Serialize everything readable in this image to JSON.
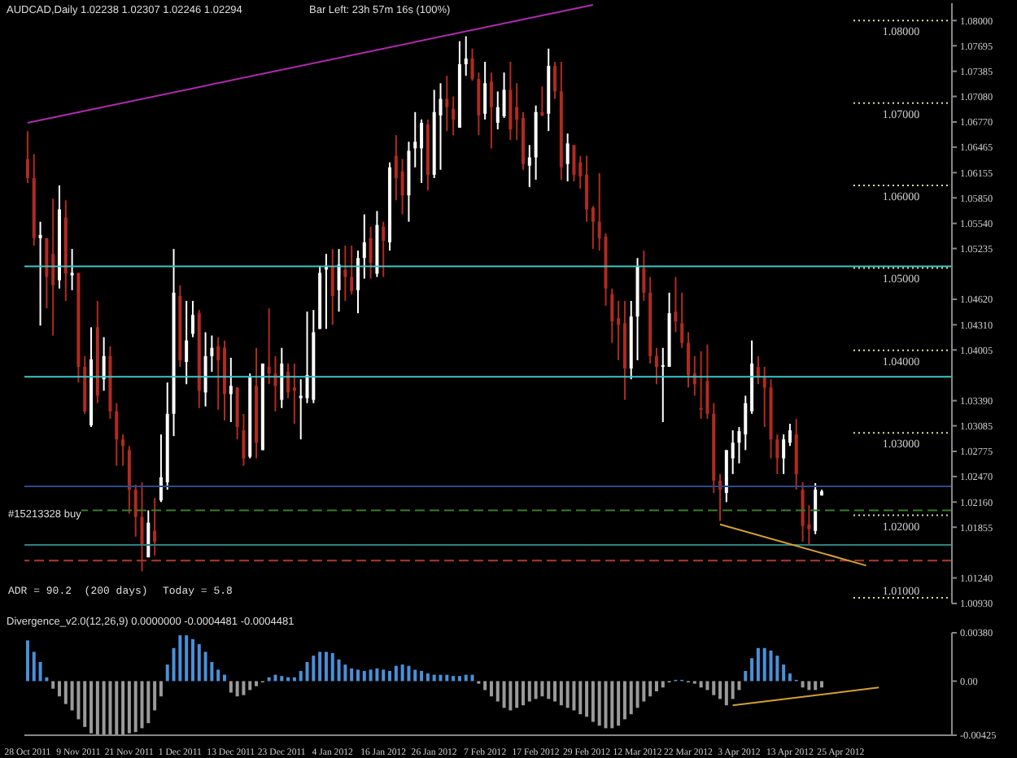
{
  "chart_data": [
    {
      "type": "candlestick",
      "title": "AUDCAD,Daily 1.02238 1.02307 1.02246 1.02294",
      "tick_labels": "y",
      "annotations": [
        "Bar Left: 23h 57m 16s (100%)",
        "#15213328 buy",
        "ADR = 90.2  (200 days)",
        "Today = 5.8"
      ],
      "categories": [
        null,
        null,
        null,
        null,
        null,
        null,
        null,
        null,
        null,
        null,
        null,
        null,
        null,
        null,
        null,
        null,
        null,
        null,
        null,
        null,
        null,
        null,
        null,
        null,
        null,
        null,
        null,
        null,
        null,
        null,
        null,
        null,
        null,
        null,
        null,
        null,
        null,
        null,
        null,
        null,
        null,
        null,
        null,
        null,
        null,
        null,
        null,
        null,
        null,
        null,
        null,
        null,
        null,
        null,
        null,
        null,
        null,
        null,
        null,
        null,
        null,
        null,
        null,
        null,
        null,
        null,
        null,
        null,
        null,
        null,
        null,
        null,
        null,
        null,
        null,
        null,
        null,
        null,
        null,
        null,
        null,
        null,
        null,
        null,
        null,
        null,
        null,
        null,
        null,
        null,
        null,
        null,
        null,
        null,
        null,
        null,
        null,
        null,
        null,
        null,
        null,
        null,
        null,
        null,
        null,
        null,
        null,
        null,
        null,
        null,
        null,
        null,
        null,
        null,
        null,
        null,
        null,
        null,
        null,
        null,
        null,
        null,
        null,
        null,
        null,
        null,
        null,
        null,
        null,
        null,
        null,
        null,
        null,
        null,
        null,
        null,
        null,
        null,
        null,
        null,
        null,
        null,
        null,
        null,
        null,
        null
      ],
      "ohlc": [
        [
          1.0632,
          1.0666,
          1.0603,
          1.0609
        ],
        [
          1.0609,
          1.0638,
          1.0527,
          1.0536
        ],
        [
          1.0536,
          1.0556,
          1.043,
          1.054
        ],
        [
          1.0536,
          1.0536,
          1.0451,
          1.0489
        ],
        [
          1.0517,
          1.0584,
          1.0418,
          1.0479
        ],
        [
          1.0485,
          1.06,
          1.0475,
          1.0571
        ],
        [
          1.0561,
          1.0582,
          1.046,
          1.0493
        ],
        [
          1.0491,
          1.0523,
          1.0473,
          1.0494
        ],
        [
          1.0494,
          1.0494,
          1.0361,
          1.038
        ],
        [
          1.038,
          1.0393,
          1.0323,
          1.0326
        ],
        [
          1.0309,
          1.0428,
          1.0307,
          1.0389
        ],
        [
          1.0428,
          1.046,
          1.0336,
          1.0345
        ],
        [
          1.0365,
          1.0416,
          1.0351,
          1.0393
        ],
        [
          1.0393,
          1.0405,
          1.0317,
          1.0326
        ],
        [
          1.0326,
          1.0336,
          1.026,
          1.0292
        ],
        [
          1.0292,
          1.0298,
          1.026,
          1.0284
        ],
        [
          1.0279,
          1.0284,
          1.0202,
          1.0231
        ],
        [
          1.0231,
          1.0237,
          1.0174,
          1.0198
        ],
        [
          1.0198,
          1.024,
          1.0132,
          1.0164
        ],
        [
          1.0149,
          1.0206,
          1.0149,
          1.0191
        ],
        [
          1.0181,
          1.0221,
          1.0151,
          1.0168
        ],
        [
          1.0218,
          1.0298,
          1.0216,
          1.0246
        ],
        [
          1.024,
          1.0361,
          1.0231,
          1.0323
        ],
        [
          1.0323,
          1.0523,
          1.0296,
          1.047
        ],
        [
          1.0466,
          1.0479,
          1.038,
          1.0388
        ],
        [
          1.0386,
          1.046,
          1.0359,
          1.0412
        ],
        [
          1.042,
          1.046,
          1.0416,
          1.0443
        ],
        [
          1.0445,
          1.0449,
          1.033,
          1.0351
        ],
        [
          1.0349,
          1.0422,
          1.0332,
          1.0393
        ],
        [
          1.0393,
          1.0418,
          1.0374,
          1.0403
        ],
        [
          1.0405,
          1.0416,
          1.0328,
          1.0388
        ],
        [
          1.0403,
          1.0412,
          1.0315,
          1.0347
        ],
        [
          1.0347,
          1.0391,
          1.0313,
          1.0357
        ],
        [
          1.0355,
          1.0355,
          1.0292,
          1.0307
        ],
        [
          1.0303,
          1.0323,
          1.026,
          1.0269
        ],
        [
          1.0271,
          1.0372,
          1.0269,
          1.0367
        ],
        [
          1.0357,
          1.0403,
          1.0269,
          1.0288
        ],
        [
          1.0279,
          1.0384,
          1.0279,
          1.0384
        ],
        [
          1.038,
          1.0451,
          1.0359,
          1.0372
        ],
        [
          1.0372,
          1.0393,
          1.0326,
          1.0357
        ],
        [
          1.034,
          1.0403,
          1.033,
          1.0384
        ],
        [
          1.0374,
          1.0384,
          1.0342,
          1.0349
        ],
        [
          1.0355,
          1.0384,
          1.0311,
          1.0351
        ],
        [
          1.0342,
          1.0365,
          1.0292,
          1.0345
        ],
        [
          1.0342,
          1.0447,
          1.0336,
          1.037
        ],
        [
          1.034,
          1.0449,
          1.0336,
          1.0422
        ],
        [
          1.0426,
          1.0502,
          1.0426,
          1.0494
        ],
        [
          1.0498,
          1.0517,
          1.0426,
          1.0502
        ],
        [
          1.0502,
          1.0523,
          1.0431,
          1.0466
        ],
        [
          1.0473,
          1.0523,
          1.0447,
          1.0504
        ],
        [
          1.0498,
          1.0527,
          1.046,
          1.0489
        ],
        [
          1.0489,
          1.0527,
          1.0468,
          1.0472
        ],
        [
          1.0473,
          1.0521,
          1.0445,
          1.0512
        ],
        [
          1.0512,
          1.0565,
          1.0487,
          1.0531
        ],
        [
          1.0536,
          1.055,
          1.0487,
          1.0506
        ],
        [
          1.0493,
          1.0569,
          1.0489,
          1.0552
        ],
        [
          1.055,
          1.0556,
          1.0489,
          1.0533
        ],
        [
          1.0531,
          1.0628,
          1.0521,
          1.0622
        ],
        [
          1.0636,
          1.0661,
          1.0582,
          1.0609
        ],
        [
          1.0617,
          1.0632,
          1.0565,
          1.0588
        ],
        [
          1.0588,
          1.0653,
          1.0556,
          1.0642
        ],
        [
          1.0645,
          1.0689,
          1.0622,
          1.0653
        ],
        [
          1.0645,
          1.068,
          1.0603,
          1.0676
        ],
        [
          1.0674,
          1.068,
          1.0594,
          1.0613
        ],
        [
          1.0613,
          1.0716,
          1.0609,
          1.0689
        ],
        [
          1.0685,
          1.0724,
          1.0619,
          1.0705
        ],
        [
          1.0705,
          1.0733,
          1.0666,
          1.0695
        ],
        [
          1.0693,
          1.0708,
          1.0661,
          1.068
        ],
        [
          1.067,
          1.0775,
          1.067,
          1.0747
        ],
        [
          1.0747,
          1.0781,
          1.0733,
          1.0754
        ],
        [
          1.0754,
          1.0766,
          1.0727,
          1.0729
        ],
        [
          1.0729,
          1.0737,
          1.0661,
          1.0685
        ],
        [
          1.0687,
          1.075,
          1.068,
          1.0724
        ],
        [
          1.0726,
          1.0737,
          1.0645,
          1.0695
        ],
        [
          1.0676,
          1.0714,
          1.0668,
          1.0695
        ],
        [
          1.0684,
          1.0737,
          1.0682,
          1.0716
        ],
        [
          1.0716,
          1.075,
          1.0655,
          1.0668
        ],
        [
          1.0695,
          1.0724,
          1.0655,
          1.068
        ],
        [
          1.0682,
          1.0689,
          1.0619,
          1.0626
        ],
        [
          1.0624,
          1.0649,
          1.0598,
          1.0634
        ],
        [
          1.0634,
          1.0697,
          1.0607,
          1.0689
        ],
        [
          1.0689,
          1.072,
          1.0684,
          1.0685
        ],
        [
          1.0687,
          1.0766,
          1.0666,
          1.0745
        ],
        [
          1.0745,
          1.075,
          1.0705,
          1.0714
        ],
        [
          1.0714,
          1.075,
          1.0607,
          1.0622
        ],
        [
          1.0626,
          1.0663,
          1.0605,
          1.0651
        ],
        [
          1.0649,
          1.0649,
          1.0605,
          1.0613
        ],
        [
          1.0628,
          1.0636,
          1.0596,
          1.0611
        ],
        [
          1.0613,
          1.0636,
          1.0556,
          1.0571
        ],
        [
          1.0573,
          1.0575,
          1.0523,
          1.0556
        ],
        [
          1.0556,
          1.0615,
          1.0521,
          1.0536
        ],
        [
          1.0538,
          1.0542,
          1.0454,
          1.0475
        ],
        [
          1.0468,
          1.0475,
          1.0409,
          1.0435
        ],
        [
          1.0439,
          1.046,
          1.0388,
          1.0431
        ],
        [
          1.0433,
          1.046,
          1.034,
          1.0378
        ],
        [
          1.0378,
          1.046,
          1.0365,
          1.0441
        ],
        [
          1.0441,
          1.0512,
          1.0388,
          1.0502
        ],
        [
          1.05,
          1.0521,
          1.046,
          1.047
        ],
        [
          1.047,
          1.0489,
          1.0384,
          1.0393
        ],
        [
          1.0393,
          1.0403,
          1.0359,
          1.038
        ],
        [
          1.038,
          1.0403,
          1.0313,
          1.0382
        ],
        [
          1.038,
          1.047,
          1.038,
          1.0445
        ],
        [
          1.0447,
          1.0489,
          1.0422,
          1.0435
        ],
        [
          1.0433,
          1.047,
          1.0403,
          1.0409
        ],
        [
          1.0409,
          1.0422,
          1.0355,
          1.037
        ],
        [
          1.0372,
          1.0393,
          1.0345,
          1.0359
        ],
        [
          1.033,
          1.0399,
          1.0317,
          1.033
        ],
        [
          1.0363,
          1.0407,
          1.0317,
          1.0323
        ],
        [
          1.0323,
          1.0336,
          1.0227,
          1.0242
        ],
        [
          1.0242,
          1.025,
          1.0193,
          1.0231
        ],
        [
          1.0227,
          1.0279,
          1.0216,
          1.0279
        ],
        [
          1.0269,
          1.0303,
          1.025,
          1.0288
        ],
        [
          1.0288,
          1.0307,
          1.0263,
          1.0302
        ],
        [
          1.0298,
          1.0345,
          1.0279,
          1.0336
        ],
        [
          1.0326,
          1.0412,
          1.0323,
          1.0384
        ],
        [
          1.038,
          1.0393,
          1.0359,
          1.0368
        ],
        [
          1.0368,
          1.038,
          1.0307,
          1.0355
        ],
        [
          1.0355,
          1.0365,
          1.0269,
          1.0292
        ],
        [
          1.0292,
          1.0298,
          1.025,
          1.0269
        ],
        [
          1.0269,
          1.0298,
          1.025,
          1.0292
        ],
        [
          1.0288,
          1.0311,
          1.0284,
          1.0303
        ],
        [
          1.0298,
          1.0317,
          1.0231,
          1.025
        ],
        [
          1.0231,
          1.024,
          1.0168,
          1.0187
        ],
        [
          1.0189,
          1.0212,
          1.0164,
          1.0183
        ],
        [
          1.0181,
          1.0239,
          1.0177,
          1.0231
        ],
        [
          1.0224,
          1.0231,
          1.0224,
          1.0229
        ],
        null,
        null,
        null,
        null,
        null,
        null,
        null,
        null,
        null,
        null,
        null,
        null,
        null,
        null,
        null,
        null,
        null,
        null,
        null,
        null
      ],
      "colors": [
        "#b22a22",
        "#b22a22",
        "#ffffff",
        "#b22a22",
        "#b22a22",
        "#ffffff",
        "#b22a22",
        "#ffffff",
        "#b22a22",
        "#b22a22",
        "#ffffff",
        "#b22a22",
        "#ffffff",
        "#b22a22",
        "#b22a22",
        "#b22a22",
        "#b22a22",
        "#b22a22",
        "#b22a22",
        "#ffffff",
        "#b22a22",
        "#ffffff",
        "#ffffff",
        "#ffffff",
        "#b22a22",
        "#ffffff",
        "#ffffff",
        "#b22a22",
        "#ffffff",
        "#ffffff",
        "#b22a22",
        "#b22a22",
        "#ffffff",
        "#b22a22",
        "#b22a22",
        "#ffffff",
        "#b22a22",
        "#ffffff",
        "#b22a22",
        "#b22a22",
        "#ffffff",
        "#b22a22",
        "#b22a22",
        "#ffffff",
        "#ffffff",
        "#ffffff",
        "#ffffff",
        "#ffffff",
        "#b22a22",
        "#ffffff",
        "#b22a22",
        "#b22a22",
        "#ffffff",
        "#ffffff",
        "#b22a22",
        "#ffffff",
        "#b22a22",
        "#ffffff",
        "#b22a22",
        "#b22a22",
        "#ffffff",
        "#ffffff",
        "#ffffff",
        "#b22a22",
        "#ffffff",
        "#ffffff",
        "#b22a22",
        "#b22a22",
        "#ffffff",
        "#ffffff",
        "#b22a22",
        "#b22a22",
        "#ffffff",
        "#b22a22",
        "#ffffff",
        "#ffffff",
        "#b22a22",
        "#b22a22",
        "#b22a22",
        "#ffffff",
        "#ffffff",
        "#b22a22",
        "#ffffff",
        "#b22a22",
        "#b22a22",
        "#ffffff",
        "#b22a22",
        "#b22a22",
        "#b22a22",
        "#b22a22",
        "#b22a22",
        "#b22a22",
        "#b22a22",
        "#b22a22",
        "#b22a22",
        "#ffffff",
        "#ffffff",
        "#b22a22",
        "#b22a22",
        "#b22a22",
        "#ffffff",
        "#ffffff",
        "#b22a22",
        "#b22a22",
        "#b22a22",
        "#b22a22",
        "#b22a22",
        "#b22a22",
        "#b22a22",
        "#b22a22",
        "#ffffff",
        "#ffffff",
        "#ffffff",
        "#ffffff",
        "#ffffff",
        "#b22a22",
        "#b22a22",
        "#b22a22",
        "#b22a22",
        "#ffffff",
        "#ffffff",
        "#b22a22",
        "#b22a22",
        "#b22a22",
        "#ffffff",
        "#ffffff",
        null,
        null,
        null,
        null,
        null,
        null,
        null,
        null,
        null,
        null,
        null,
        null,
        null,
        null,
        null,
        null,
        null,
        null,
        null,
        null
      ],
      "series": [
        {
          "type": "line",
          "color": "#b02ab0",
          "values": [
            1.0676,
            null,
            null,
            null,
            null,
            null,
            null,
            null,
            null,
            null,
            null,
            null,
            null,
            null,
            null,
            null,
            null,
            null,
            null,
            null,
            null,
            null,
            null,
            null,
            null,
            null,
            null,
            null,
            null,
            null,
            null,
            null,
            null,
            null,
            null,
            null,
            null,
            null,
            null,
            null,
            null,
            null,
            null,
            null,
            null,
            null,
            null,
            null,
            null,
            null,
            null,
            null,
            null,
            null,
            null,
            null,
            null,
            null,
            null,
            null,
            null,
            null,
            null,
            null,
            null,
            null,
            null,
            null,
            null,
            null,
            null,
            null,
            null,
            null,
            null,
            null,
            null,
            null,
            null,
            null,
            null,
            null,
            null,
            null,
            null,
            null,
            null,
            null,
            null,
            1.0819,
            null,
            null,
            null,
            null,
            null,
            null,
            null,
            null,
            null,
            null,
            null,
            null,
            null,
            null,
            null,
            null,
            null,
            null,
            null,
            null,
            null,
            null,
            null,
            null,
            null,
            null,
            null,
            null,
            null,
            null,
            null,
            null,
            null,
            null,
            null,
            null,
            null,
            null,
            null,
            null,
            null,
            null,
            null,
            null,
            null,
            null,
            null,
            null,
            null,
            null,
            null,
            null,
            null,
            null,
            null,
            null
          ]
        },
        {
          "type": "line",
          "color": "#d4a030",
          "values": [
            null,
            null,
            null,
            null,
            null,
            null,
            null,
            null,
            null,
            null,
            null,
            null,
            null,
            null,
            null,
            null,
            null,
            null,
            null,
            null,
            null,
            null,
            null,
            null,
            null,
            null,
            null,
            null,
            null,
            null,
            null,
            null,
            null,
            null,
            null,
            null,
            null,
            null,
            null,
            null,
            null,
            null,
            null,
            null,
            null,
            null,
            null,
            null,
            null,
            null,
            null,
            null,
            null,
            null,
            null,
            null,
            null,
            null,
            null,
            null,
            null,
            null,
            null,
            null,
            null,
            null,
            null,
            null,
            null,
            null,
            null,
            null,
            null,
            null,
            null,
            null,
            null,
            null,
            null,
            null,
            null,
            null,
            null,
            null,
            null,
            null,
            null,
            null,
            null,
            null,
            null,
            null,
            null,
            null,
            null,
            null,
            null,
            null,
            null,
            null,
            null,
            null,
            null,
            null,
            null,
            null,
            null,
            null,
            null,
            1.0189,
            null,
            null,
            null,
            null,
            null,
            null,
            null,
            null,
            null,
            null,
            null,
            null,
            null,
            null,
            null,
            null,
            null,
            null,
            null,
            null,
            null,
            null,
            1.0139,
            null,
            null,
            null,
            null,
            null,
            null,
            null,
            null,
            null,
            null,
            null,
            null,
            null
          ]
        }
      ],
      "ylim": [
        1.0093,
        1.0821
      ],
      "yticks": [
        {
          "value": 1.08,
          "label": "1.08000"
        },
        {
          "value": 1.07695,
          "label": "1.07695"
        },
        {
          "value": 1.07385,
          "label": "1.07385"
        },
        {
          "value": 1.0708,
          "label": "1.07080"
        },
        {
          "value": 1.0677,
          "label": "1.06770"
        },
        {
          "value": 1.06465,
          "label": "1.06465"
        },
        {
          "value": 1.06155,
          "label": "1.06155"
        },
        {
          "value": 1.0585,
          "label": "1.05850"
        },
        {
          "value": 1.0554,
          "label": "1.05540"
        },
        {
          "value": 1.05235,
          "label": "1.05235"
        },
        {
          "value": 1.0462,
          "label": "1.04620"
        },
        {
          "value": 1.0431,
          "label": "1.04310"
        },
        {
          "value": 1.04005,
          "label": "1.04005"
        },
        {
          "value": 1.0339,
          "label": "1.03390"
        },
        {
          "value": 1.03085,
          "label": "1.03085"
        },
        {
          "value": 1.02775,
          "label": "1.02775"
        },
        {
          "value": 1.0247,
          "label": "1.02470"
        },
        {
          "value": 1.0216,
          "label": "1.02160"
        },
        {
          "value": 1.01855,
          "label": "1.01855"
        },
        {
          "value": 1.0124,
          "label": "1.01240"
        },
        {
          "value": 1.0093,
          "label": "1.00930"
        }
      ],
      "ref_lines": [
        {
          "axis": "y",
          "value": 1.0502,
          "color": "#3fc6c6"
        },
        {
          "axis": "y",
          "value": 1.0368,
          "color": "#3fc6c6"
        },
        {
          "axis": "y",
          "value": 1.0235,
          "color": "#2a4a8c"
        },
        {
          "axis": "y",
          "value": 1.0206,
          "color": "#3a7d2a",
          "line_style": "dashed"
        },
        {
          "axis": "y",
          "value": 1.0164,
          "color": "#2f7f7f"
        },
        {
          "axis": "y",
          "value": 1.0145,
          "color": "#b03a2e",
          "line_style": "dashed"
        },
        {
          "axis": "y",
          "value": 1.08,
          "label": "1.08000",
          "color": "#e0e0a0",
          "line_style": "dotted"
        },
        {
          "axis": "y",
          "value": 1.07,
          "label": "1.07000",
          "color": "#e0e0a0",
          "line_style": "dotted"
        },
        {
          "axis": "y",
          "value": 1.06,
          "label": "1.06000",
          "color": "#e0e0a0",
          "line_style": "dotted"
        },
        {
          "axis": "y",
          "value": 1.05,
          "label": "1.05000",
          "color": "#e0e0a0",
          "line_style": "dotted"
        },
        {
          "axis": "y",
          "value": 1.04,
          "label": "1.04000",
          "color": "#e0e0a0",
          "line_style": "dotted"
        },
        {
          "axis": "y",
          "value": 1.03,
          "label": "1.03000",
          "color": "#e0e0a0",
          "line_style": "dotted"
        },
        {
          "axis": "y",
          "value": 1.02,
          "label": "1.02000",
          "color": "#e0e0a0",
          "line_style": "dotted"
        },
        {
          "axis": "y",
          "value": 1.01,
          "label": "1.01000",
          "color": "#e0e0a0",
          "line_style": "dotted"
        }
      ]
    },
    {
      "type": "bar",
      "title": "Divergence_v2.0(12,26,9) 0.0000000 -0.0004481 -0.0004481",
      "categories": [
        "28 Oct 2011",
        null,
        null,
        null,
        null,
        null,
        null,
        null,
        "9 Nov 2011",
        null,
        null,
        null,
        null,
        null,
        null,
        null,
        "21 Nov 2011",
        null,
        null,
        null,
        null,
        null,
        null,
        null,
        "1 Dec 2011",
        null,
        null,
        null,
        null,
        null,
        null,
        null,
        "13 Dec 2011",
        null,
        null,
        null,
        null,
        null,
        null,
        null,
        "23 Dec 2011",
        null,
        null,
        null,
        null,
        null,
        null,
        null,
        "4 Jan 2012",
        null,
        null,
        null,
        null,
        null,
        null,
        null,
        "16 Jan 2012",
        null,
        null,
        null,
        null,
        null,
        null,
        null,
        "26 Jan 2012",
        null,
        null,
        null,
        null,
        null,
        null,
        null,
        "7 Feb 2012",
        null,
        null,
        null,
        null,
        null,
        null,
        null,
        "17 Feb 2012",
        null,
        null,
        null,
        null,
        null,
        null,
        null,
        "29 Feb 2012",
        null,
        null,
        null,
        null,
        null,
        null,
        null,
        "12 Mar 2012",
        null,
        null,
        null,
        null,
        null,
        null,
        null,
        "22 Mar 2012",
        null,
        null,
        null,
        null,
        null,
        null,
        null,
        "3 Apr 2012",
        null,
        null,
        null,
        null,
        null,
        null,
        null,
        "13 Apr 2012",
        null,
        null,
        null,
        null,
        null,
        null,
        null,
        "25 Apr 2012",
        null,
        null,
        null,
        null,
        null,
        null,
        null,
        null,
        null,
        null,
        null,
        null,
        null,
        null,
        null,
        null,
        null
      ],
      "series": [
        {
          "type": "bar",
          "values": [
            0.0032,
            0.0023,
            0.0015,
            0.0003,
            -0.0006,
            -0.0012,
            -0.0018,
            -0.0023,
            -0.003,
            -0.0036,
            -0.0041,
            -0.0042,
            -0.0042,
            -0.0042,
            -0.0042,
            -0.0042,
            -0.0041,
            -0.004,
            -0.0037,
            -0.0033,
            -0.0023,
            -0.0012,
            0.0013,
            0.0026,
            0.0036,
            0.0036,
            0.0033,
            0.0029,
            0.0023,
            0.0015,
            0.0009,
            0.0005,
            -0.0009,
            -0.0012,
            -0.0011,
            -0.0007,
            -0.0004,
            -0.0001,
            0.0003,
            0.0005,
            0.0004,
            0.0003,
            0.0003,
            0.0008,
            0.0015,
            0.002,
            0.0023,
            0.0023,
            0.0022,
            0.0017,
            0.0013,
            0.001,
            0.0009,
            0.0008,
            0.0009,
            0.001,
            0.0009,
            0.0008,
            0.0012,
            0.0013,
            0.0012,
            0.0009,
            0.0008,
            0.0006,
            0.0005,
            0.0005,
            0.0005,
            0.0004,
            0.0004,
            0.0005,
            0.0005,
            -0.0002,
            -0.0007,
            -0.0012,
            -0.0016,
            -0.0021,
            -0.0023,
            -0.0021,
            -0.0019,
            -0.0016,
            -0.0014,
            -0.0012,
            -0.0014,
            -0.0016,
            -0.0019,
            -0.0021,
            -0.0023,
            -0.0026,
            -0.0028,
            -0.0032,
            -0.0035,
            -0.0037,
            -0.0037,
            -0.0035,
            -0.003,
            -0.0026,
            -0.0021,
            -0.0016,
            -0.0012,
            -0.0008,
            -0.0005,
            -0.0001,
            0.0001,
            0.0001,
            -0.0001,
            -0.0002,
            -0.0005,
            -0.0007,
            -0.0011,
            -0.0014,
            -0.0019,
            -0.0014,
            -0.0007,
            0.0008,
            0.0018,
            0.0026,
            0.0026,
            0.0024,
            0.002,
            0.0013,
            0.0006,
            0.0001,
            -0.0005,
            -0.0007,
            -0.0007,
            -0.0005,
            null,
            null,
            null,
            null,
            null,
            null,
            null,
            null,
            null,
            null,
            null,
            null,
            null,
            null,
            null,
            null,
            null,
            null,
            null,
            null
          ],
          "colors": [
            "#4a90d9",
            "#4a90d9",
            "#4a90d9",
            "#4a90d9",
            "#9a9a9a",
            "#9a9a9a",
            "#9a9a9a",
            "#9a9a9a",
            "#9a9a9a",
            "#9a9a9a",
            "#9a9a9a",
            "#9a9a9a",
            "#9a9a9a",
            "#9a9a9a",
            "#9a9a9a",
            "#9a9a9a",
            "#9a9a9a",
            "#9a9a9a",
            "#9a9a9a",
            "#9a9a9a",
            "#9a9a9a",
            "#9a9a9a",
            "#4a90d9",
            "#4a90d9",
            "#4a90d9",
            "#4a90d9",
            "#4a90d9",
            "#4a90d9",
            "#4a90d9",
            "#4a90d9",
            "#4a90d9",
            "#4a90d9",
            "#9a9a9a",
            "#9a9a9a",
            "#9a9a9a",
            "#9a9a9a",
            "#9a9a9a",
            "#9a9a9a",
            "#4a90d9",
            "#4a90d9",
            "#4a90d9",
            "#4a90d9",
            "#4a90d9",
            "#4a90d9",
            "#4a90d9",
            "#4a90d9",
            "#4a90d9",
            "#4a90d9",
            "#4a90d9",
            "#4a90d9",
            "#4a90d9",
            "#4a90d9",
            "#4a90d9",
            "#4a90d9",
            "#4a90d9",
            "#4a90d9",
            "#4a90d9",
            "#4a90d9",
            "#4a90d9",
            "#4a90d9",
            "#4a90d9",
            "#4a90d9",
            "#4a90d9",
            "#4a90d9",
            "#4a90d9",
            "#4a90d9",
            "#4a90d9",
            "#4a90d9",
            "#4a90d9",
            "#4a90d9",
            "#4a90d9",
            "#9a9a9a",
            "#9a9a9a",
            "#9a9a9a",
            "#9a9a9a",
            "#9a9a9a",
            "#9a9a9a",
            "#9a9a9a",
            "#9a9a9a",
            "#9a9a9a",
            "#9a9a9a",
            "#9a9a9a",
            "#9a9a9a",
            "#9a9a9a",
            "#9a9a9a",
            "#9a9a9a",
            "#9a9a9a",
            "#9a9a9a",
            "#9a9a9a",
            "#9a9a9a",
            "#9a9a9a",
            "#9a9a9a",
            "#9a9a9a",
            "#9a9a9a",
            "#9a9a9a",
            "#9a9a9a",
            "#9a9a9a",
            "#9a9a9a",
            "#9a9a9a",
            "#9a9a9a",
            "#9a9a9a",
            "#9a9a9a",
            "#4a90d9",
            "#4a90d9",
            "#9a9a9a",
            "#9a9a9a",
            "#9a9a9a",
            "#9a9a9a",
            "#9a9a9a",
            "#9a9a9a",
            "#9a9a9a",
            "#9a9a9a",
            "#9a9a9a",
            "#4a90d9",
            "#4a90d9",
            "#4a90d9",
            "#4a90d9",
            "#4a90d9",
            "#4a90d9",
            "#4a90d9",
            "#4a90d9",
            "#4a90d9",
            "#9a9a9a",
            "#9a9a9a",
            "#9a9a9a",
            "#9a9a9a",
            null,
            null,
            null,
            null,
            null,
            null,
            null,
            null,
            null,
            null,
            null,
            null,
            null,
            null,
            null,
            null,
            null,
            null,
            null,
            null
          ]
        },
        {
          "type": "line",
          "color": "#d4a030",
          "values": [
            null,
            null,
            null,
            null,
            null,
            null,
            null,
            null,
            null,
            null,
            null,
            null,
            null,
            null,
            null,
            null,
            null,
            null,
            null,
            null,
            null,
            null,
            null,
            null,
            null,
            null,
            null,
            null,
            null,
            null,
            null,
            null,
            null,
            null,
            null,
            null,
            null,
            null,
            null,
            null,
            null,
            null,
            null,
            null,
            null,
            null,
            null,
            null,
            null,
            null,
            null,
            null,
            null,
            null,
            null,
            null,
            null,
            null,
            null,
            null,
            null,
            null,
            null,
            null,
            null,
            null,
            null,
            null,
            null,
            null,
            null,
            null,
            null,
            null,
            null,
            null,
            null,
            null,
            null,
            null,
            null,
            null,
            null,
            null,
            null,
            null,
            null,
            null,
            null,
            null,
            null,
            null,
            null,
            null,
            null,
            null,
            null,
            null,
            null,
            null,
            null,
            null,
            null,
            null,
            null,
            null,
            null,
            null,
            null,
            null,
            null,
            -0.0019,
            null,
            null,
            null,
            null,
            null,
            null,
            null,
            null,
            null,
            null,
            null,
            null,
            null,
            null,
            null,
            null,
            null,
            null,
            null,
            null,
            null,
            null,
            -0.0005,
            null,
            null,
            null,
            null,
            null,
            null,
            null,
            null,
            null,
            null,
            null
          ]
        }
      ],
      "ylim": [
        -0.00425,
        0.0038
      ],
      "yticks": [
        {
          "value": 0.0038,
          "label": "0.00380"
        },
        {
          "value": 0,
          "label": "0.00"
        },
        {
          "value": -0.00425,
          "label": "-0.00425"
        }
      ]
    }
  ]
}
